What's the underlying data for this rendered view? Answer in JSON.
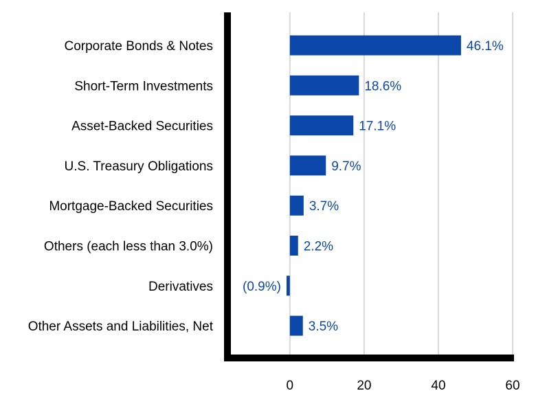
{
  "chart_data": {
    "type": "bar",
    "orientation": "horizontal",
    "categories": [
      "Corporate Bonds & Notes",
      "Short-Term Investments",
      "Asset-Backed Securities",
      "U.S. Treasury Obligations",
      "Mortgage-Backed Securities",
      "Others (each less than 3.0%)",
      "Derivatives",
      "Other Assets and Liabilities, Net"
    ],
    "values": [
      46.1,
      18.6,
      17.1,
      9.7,
      3.7,
      2.2,
      -0.9,
      3.5
    ],
    "value_labels": [
      "46.1%",
      "18.6%",
      "17.1%",
      "9.7%",
      "3.7%",
      "2.2%",
      "(0.9%)",
      "3.5%"
    ],
    "xlim": [
      -17,
      60
    ],
    "xticks": [
      0,
      20,
      40,
      60
    ],
    "grid": true,
    "bar_color": "#0b47a8",
    "label_color": "#0b47a8",
    "grid_color": "#d9d9d9",
    "axis_color": "#000000"
  }
}
